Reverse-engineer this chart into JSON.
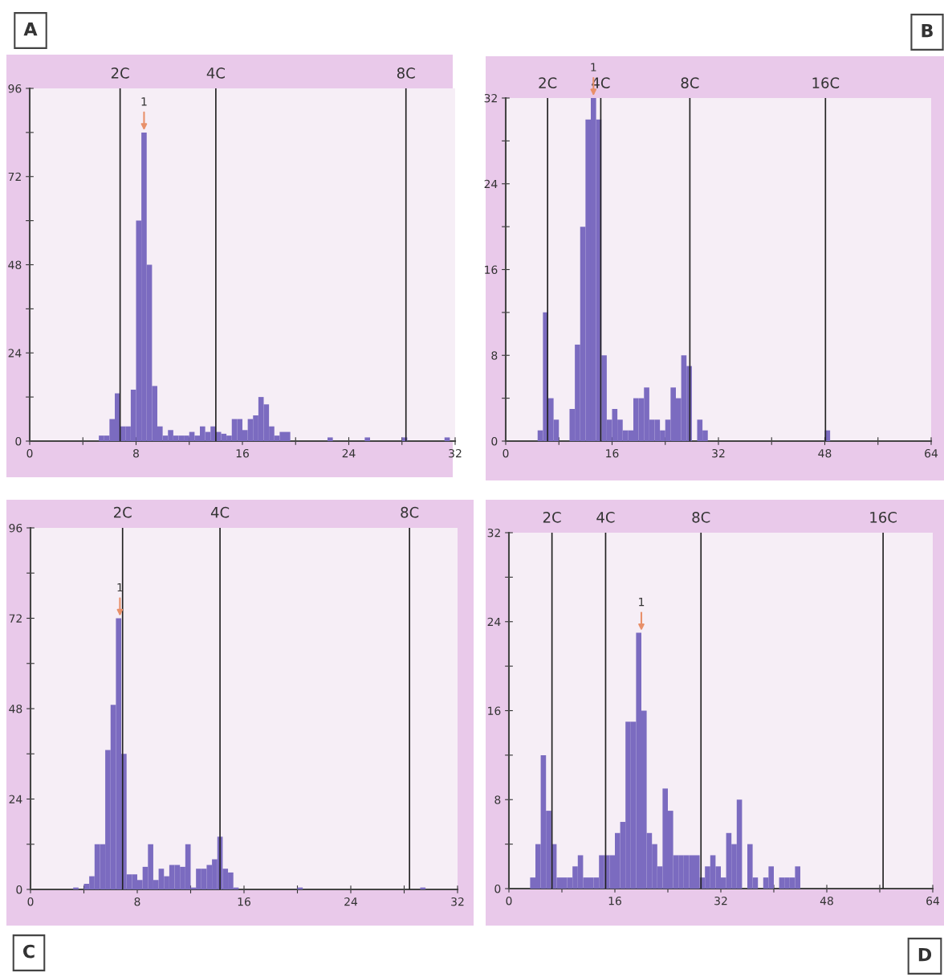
{
  "chart_data": [
    {
      "type": "histogram",
      "title": "A",
      "color": "#7b6bc0",
      "bins": [
        0,
        0.4,
        0.8,
        1.2,
        1.6,
        2,
        2.4,
        2.8,
        3.2,
        3.6,
        4,
        4.4,
        4.8,
        5.2,
        5.6,
        6,
        6.4,
        6.8,
        7.2,
        7.6,
        8,
        8.4,
        8.8,
        9.2,
        9.6,
        10,
        10.4,
        10.8,
        11.2,
        11.6,
        12,
        12.4,
        12.8,
        13.2,
        13.6,
        14,
        14.4,
        14.8,
        15.2,
        15.6,
        16,
        16.4,
        16.8,
        17.2,
        17.6,
        18,
        18.4,
        18.8,
        19.2,
        19.6,
        20,
        20.4,
        20.8,
        21.2,
        21.6,
        22,
        22.4,
        22.8,
        23.2,
        23.6,
        24,
        24.4,
        24.8,
        25.2,
        25.6,
        26,
        26.4,
        26.8,
        27.2,
        27.6,
        28,
        28.4,
        28.8,
        29.2,
        29.6,
        30,
        30.4,
        30.8,
        31.2,
        31.6,
        32
      ],
      "values": [
        0,
        0,
        0,
        0,
        0,
        0,
        0,
        0,
        0,
        0,
        0,
        0,
        0,
        1.5,
        1.5,
        6,
        13,
        4,
        4,
        14,
        60,
        84,
        48,
        15,
        4,
        1.5,
        3,
        1.5,
        1.5,
        1.5,
        2.5,
        1.5,
        4,
        2.5,
        4,
        2.5,
        2,
        1.5,
        6,
        6,
        3,
        6,
        7,
        12,
        10,
        4,
        1.5,
        2.5,
        2.5,
        0,
        0,
        0,
        0,
        0,
        0,
        0,
        1,
        0,
        0,
        0,
        0,
        0,
        0,
        1,
        0,
        0,
        0,
        0,
        0,
        0,
        1,
        0,
        0,
        0,
        0,
        0,
        0,
        0,
        1,
        0
      ],
      "xlim": [
        0,
        32
      ],
      "ylim": [
        0,
        96
      ],
      "xticks": [
        0,
        {
          "value": 4,
          "label": null
        },
        8,
        {
          "value": 12,
          "label": null
        },
        16,
        {
          "value": 20,
          "label": null
        },
        24,
        {
          "value": 28,
          "label": null
        },
        32
      ],
      "yticks": [
        0,
        {
          "value": 12,
          "label": null
        },
        24,
        {
          "value": 36,
          "label": null
        },
        48,
        {
          "value": 60,
          "label": null
        },
        72,
        {
          "value": 84,
          "label": null
        },
        96
      ],
      "ref_lines": [
        {
          "axis": "x",
          "value": 6.8,
          "label": "2C"
        },
        {
          "axis": "x",
          "value": 14,
          "label": "4C"
        },
        {
          "axis": "x",
          "value": 28.3,
          "label": "8C"
        }
      ],
      "annotations": [
        {
          "text": "1",
          "x": 8.6,
          "y": 84
        }
      ]
    },
    {
      "type": "histogram",
      "title": "B",
      "color": "#7b6bc0",
      "bins": [
        0,
        0.8,
        1.6,
        2.4,
        3.2,
        4,
        4.8,
        5.6,
        6.4,
        7.2,
        8,
        8.8,
        9.6,
        10.4,
        11.2,
        12,
        12.8,
        13.6,
        14.4,
        15.2,
        16,
        16.8,
        17.6,
        18.4,
        19.2,
        20,
        20.8,
        21.6,
        22.4,
        23.2,
        24,
        24.8,
        25.6,
        26.4,
        27.2,
        28,
        28.8,
        29.6,
        30.4,
        31.2,
        32,
        32.8,
        33.6,
        34.4,
        35.2,
        36,
        36.8,
        37.6,
        38.4,
        39.2,
        40,
        40.8,
        41.6,
        42.4,
        43.2,
        44,
        44.8,
        45.6,
        46.4,
        47.2,
        48,
        48.8,
        49.6,
        50.4,
        51.2,
        52,
        52.8,
        53.6,
        54.4,
        55.2,
        56,
        56.8,
        57.6,
        58.4,
        59.2,
        60,
        60.8,
        61.6,
        62.4,
        63.2,
        64
      ],
      "values": [
        0,
        0,
        0,
        0,
        0,
        0,
        1,
        12,
        4,
        2,
        0,
        0,
        3,
        9,
        20,
        30,
        32,
        30,
        8,
        2,
        3,
        2,
        1,
        1,
        4,
        4,
        5,
        2,
        2,
        1,
        2,
        5,
        4,
        8,
        7,
        0,
        2,
        1,
        0,
        0,
        0,
        0,
        0,
        0,
        0,
        0,
        0,
        0,
        0,
        0,
        0,
        0,
        0,
        0,
        0,
        0,
        0,
        0,
        0,
        0,
        1,
        0,
        0,
        0,
        0,
        0,
        0,
        0,
        0,
        0,
        0,
        0,
        0,
        0,
        0,
        0,
        0,
        0,
        0,
        0
      ],
      "xlim": [
        0,
        64
      ],
      "ylim": [
        0,
        32
      ],
      "xticks": [
        0,
        {
          "value": 8,
          "label": null
        },
        16,
        {
          "value": 24,
          "label": null
        },
        32,
        {
          "value": 40,
          "label": null
        },
        48,
        {
          "value": 56,
          "label": null
        },
        64
      ],
      "yticks": [
        0,
        {
          "value": 4,
          "label": null
        },
        8,
        {
          "value": 12,
          "label": null
        },
        16,
        {
          "value": 20,
          "label": null
        },
        24,
        {
          "value": 28,
          "label": null
        },
        32
      ],
      "ref_lines": [
        {
          "axis": "x",
          "value": 6.3,
          "label": "2C"
        },
        {
          "axis": "x",
          "value": 14.3,
          "label": "4C"
        },
        {
          "axis": "x",
          "value": 27.7,
          "label": "8C"
        },
        {
          "axis": "x",
          "value": 48.1,
          "label": "16C"
        }
      ],
      "annotations": [
        {
          "text": "1",
          "x": 13.2,
          "y": 32
        }
      ]
    },
    {
      "type": "histogram",
      "title": "C",
      "color": "#7b6bc0",
      "bins": [
        0,
        0.4,
        0.8,
        1.2,
        1.6,
        2,
        2.4,
        2.8,
        3.2,
        3.6,
        4,
        4.4,
        4.8,
        5.2,
        5.6,
        6,
        6.4,
        6.8,
        7.2,
        7.6,
        8,
        8.4,
        8.8,
        9.2,
        9.6,
        10,
        10.4,
        10.8,
        11.2,
        11.6,
        12,
        12.4,
        12.8,
        13.2,
        13.6,
        14,
        14.4,
        14.8,
        15.2,
        15.6,
        16,
        16.4,
        16.8,
        17.2,
        17.6,
        18,
        18.4,
        18.8,
        19.2,
        19.6,
        20,
        20.4,
        20.8,
        21.2,
        21.6,
        22,
        22.4,
        22.8,
        23.2,
        23.6,
        24,
        24.4,
        24.8,
        25.2,
        25.6,
        26,
        26.4,
        26.8,
        27.2,
        27.6,
        28,
        28.4,
        28.8,
        29.2,
        29.6,
        30,
        30.4,
        30.8,
        31.2,
        31.6,
        32
      ],
      "values": [
        0,
        0,
        0,
        0,
        0,
        0,
        0,
        0,
        0.5,
        0,
        1.5,
        3.5,
        12,
        12,
        37,
        49,
        72,
        36,
        4,
        4,
        2.5,
        6,
        12,
        2.5,
        5.5,
        3.5,
        6.5,
        6.5,
        6,
        12,
        0.5,
        5.5,
        5.5,
        6.5,
        8,
        14,
        5.5,
        4.5,
        0.5,
        0,
        0,
        0,
        0,
        0,
        0,
        0,
        0,
        0,
        0,
        0,
        0.5,
        0,
        0,
        0,
        0,
        0,
        0,
        0,
        0,
        0,
        0,
        0,
        0,
        0,
        0,
        0,
        0,
        0,
        0,
        0,
        0,
        0,
        0,
        0.5,
        0,
        0,
        0,
        0,
        0,
        0
      ],
      "xlim": [
        0,
        32
      ],
      "ylim": [
        0,
        96
      ],
      "xticks": [
        0,
        {
          "value": 4,
          "label": null
        },
        8,
        {
          "value": 12,
          "label": null
        },
        16,
        {
          "value": 20,
          "label": null
        },
        24,
        {
          "value": 28,
          "label": null
        },
        32
      ],
      "yticks": [
        0,
        {
          "value": 12,
          "label": null
        },
        24,
        {
          "value": 36,
          "label": null
        },
        48,
        {
          "value": 60,
          "label": null
        },
        72,
        {
          "value": 84,
          "label": null
        },
        96
      ],
      "ref_lines": [
        {
          "axis": "x",
          "value": 6.9,
          "label": "2C"
        },
        {
          "axis": "x",
          "value": 14.2,
          "label": "4C"
        },
        {
          "axis": "x",
          "value": 28.4,
          "label": "8C"
        }
      ],
      "annotations": [
        {
          "text": "1",
          "x": 6.7,
          "y": 72
        }
      ]
    },
    {
      "type": "histogram",
      "title": "D",
      "color": "#7b6bc0",
      "bins": [
        0,
        0.8,
        1.6,
        2.4,
        3.2,
        4,
        4.8,
        5.6,
        6.4,
        7.2,
        8,
        8.8,
        9.6,
        10.4,
        11.2,
        12,
        12.8,
        13.6,
        14.4,
        15.2,
        16,
        16.8,
        17.6,
        18.4,
        19.2,
        20,
        20.8,
        21.6,
        22.4,
        23.2,
        24,
        24.8,
        25.6,
        26.4,
        27.2,
        28,
        28.8,
        29.6,
        30.4,
        31.2,
        32,
        32.8,
        33.6,
        34.4,
        35.2,
        36,
        36.8,
        37.6,
        38.4,
        39.2,
        40,
        40.8,
        41.6,
        42.4,
        43.2,
        44,
        44.8,
        45.6,
        46.4,
        47.2,
        48,
        48.8,
        49.6,
        50.4,
        51.2,
        52,
        52.8,
        53.6,
        54.4,
        55.2,
        56,
        56.8,
        57.6,
        58.4,
        59.2,
        60,
        60.8,
        61.6,
        62.4,
        63.2,
        64
      ],
      "values": [
        0,
        0,
        0,
        0,
        1,
        4,
        12,
        7,
        4,
        1,
        1,
        1,
        2,
        3,
        1,
        1,
        1,
        3,
        3,
        3,
        5,
        6,
        15,
        15,
        23,
        16,
        5,
        4,
        2,
        9,
        7,
        3,
        3,
        3,
        3,
        3,
        1,
        2,
        3,
        2,
        1,
        5,
        4,
        8,
        0,
        4,
        1,
        0,
        1,
        2,
        0,
        1,
        1,
        1,
        2,
        0,
        0,
        0,
        0,
        0,
        0,
        0,
        0,
        0,
        0,
        0,
        0,
        0,
        0,
        0,
        0,
        0,
        0,
        0,
        0,
        0,
        0,
        0,
        0,
        0
      ],
      "xlim": [
        0,
        64
      ],
      "ylim": [
        0,
        32
      ],
      "xticks": [
        0,
        {
          "value": 8,
          "label": null
        },
        16,
        {
          "value": 24,
          "label": null
        },
        32,
        {
          "value": 40,
          "label": null
        },
        48,
        {
          "value": 56,
          "label": null
        },
        64
      ],
      "yticks": [
        0,
        {
          "value": 4,
          "label": null
        },
        8,
        {
          "value": 12,
          "label": null
        },
        16,
        {
          "value": 20,
          "label": null
        },
        24,
        {
          "value": 28,
          "label": null
        },
        32
      ],
      "ref_lines": [
        {
          "axis": "x",
          "value": 6.5,
          "label": "2C"
        },
        {
          "axis": "x",
          "value": 14.6,
          "label": "4C"
        },
        {
          "axis": "x",
          "value": 29.0,
          "label": "8C"
        },
        {
          "axis": "x",
          "value": 56.5,
          "label": "16C"
        }
      ],
      "annotations": [
        {
          "text": "1",
          "x": 20.0,
          "y": 23
        }
      ]
    }
  ]
}
